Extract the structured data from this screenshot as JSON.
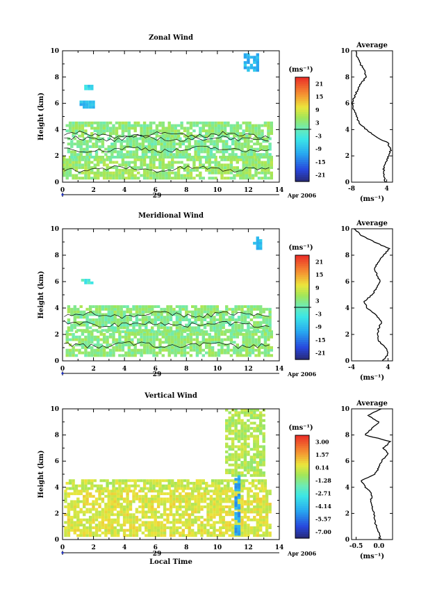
{
  "chart_data": [
    {
      "type": "heatmap",
      "title": "Zonal Wind",
      "xlabel": "",
      "ylabel": "Height (km)",
      "xlim": [
        0,
        14
      ],
      "ylim": [
        0,
        10
      ],
      "xticks": [
        "0",
        "2",
        "4",
        "6",
        "8",
        "10",
        "12",
        "14"
      ],
      "yticks": [
        "0",
        "2",
        "4",
        "6",
        "8",
        "10"
      ],
      "date_day": "29",
      "date_month": "Apr 2006",
      "colorbar": {
        "unit": "(ms⁻¹)",
        "labels": [
          "21",
          "15",
          "9",
          "3",
          "-3",
          "-9",
          "-15",
          "-21"
        ],
        "min": -24,
        "max": 24,
        "zero_line": 0
      },
      "field_levels": [
        [
          0.2,
          1.8,
          5,
          [
            0,
            13.4
          ]
        ],
        [
          1.8,
          3.4,
          3,
          [
            0.3,
            13.4
          ]
        ],
        [
          3.4,
          4.6,
          4,
          [
            0.2,
            13.4
          ]
        ],
        [
          5.6,
          6.2,
          -8,
          [
            1.1,
            2.1
          ]
        ],
        [
          7.0,
          7.4,
          -6,
          [
            1.4,
            1.9
          ]
        ],
        [
          8.4,
          9.6,
          -9,
          [
            11.7,
            12.6
          ]
        ]
      ],
      "contour_heights": [
        3.6,
        3.3,
        2.5,
        1.0
      ],
      "average": {
        "title": "Average",
        "xlabel": "(ms⁻¹)",
        "xlim": [
          -8,
          6
        ],
        "xticks": [
          "-8",
          "4"
        ],
        "yticks": [
          "0",
          "2",
          "4",
          "6",
          "8",
          "10"
        ],
        "height": [
          0.0,
          0.5,
          1.0,
          1.5,
          2.0,
          2.5,
          3.0,
          3.5,
          4.0,
          4.5,
          5.0,
          5.5,
          6.0,
          6.5,
          7.0,
          7.5,
          8.0,
          8.5,
          9.0,
          9.5,
          10.0
        ],
        "value": [
          3.5,
          3.2,
          3.0,
          3.8,
          4.6,
          5.5,
          4.3,
          0.0,
          -3.0,
          -5.5,
          -6.3,
          -7.2,
          -7.9,
          -7.0,
          -6.0,
          -4.8,
          -3.0,
          -3.5,
          -5.0,
          -6.0,
          -6.5
        ]
      }
    },
    {
      "type": "heatmap",
      "title": "Meridional Wind",
      "xlabel": "",
      "ylabel": "Height (km)",
      "xlim": [
        0,
        14
      ],
      "ylim": [
        0,
        10
      ],
      "xticks": [
        "0",
        "2",
        "4",
        "6",
        "8",
        "10",
        "12",
        "14"
      ],
      "yticks": [
        "0",
        "2",
        "4",
        "6",
        "8",
        "10"
      ],
      "date_day": "29",
      "date_month": "Apr 2006",
      "colorbar": {
        "unit": "(ms⁻¹)",
        "labels": [
          "21",
          "15",
          "9",
          "3",
          "-3",
          "-9",
          "-15",
          "-21"
        ],
        "min": -24,
        "max": 24,
        "zero_line": 0
      },
      "field_levels": [
        [
          0.3,
          2.2,
          4,
          [
            0.2,
            13.4
          ]
        ],
        [
          2.2,
          3.6,
          3,
          [
            0.3,
            13.4
          ]
        ],
        [
          3.6,
          4.1,
          4,
          [
            0.3,
            13.4
          ]
        ],
        [
          5.8,
          6.2,
          -2,
          [
            1.2,
            1.8
          ]
        ],
        [
          8.4,
          9.3,
          -9,
          [
            12.3,
            12.8
          ]
        ]
      ],
      "contour_heights": [
        3.5,
        2.8,
        1.2
      ],
      "average": {
        "title": "Average",
        "xlabel": "(ms⁻¹)",
        "xlim": [
          -4,
          5
        ],
        "xticks": [
          "-4",
          "4"
        ],
        "yticks": [
          "0",
          "2",
          "4",
          "6",
          "8",
          "10"
        ],
        "height": [
          0.0,
          0.5,
          1.0,
          1.5,
          2.0,
          2.5,
          3.0,
          3.5,
          4.0,
          4.5,
          5.0,
          5.5,
          6.0,
          6.5,
          7.0,
          7.5,
          8.0,
          8.5,
          9.0,
          9.5,
          10.0
        ],
        "value": [
          2.8,
          4.0,
          3.5,
          2.0,
          1.6,
          2.0,
          2.6,
          1.2,
          -0.5,
          -1.2,
          0.5,
          1.5,
          2.3,
          1.6,
          1.0,
          1.8,
          3.0,
          4.3,
          1.0,
          -1.8,
          -3.5
        ]
      }
    },
    {
      "type": "heatmap",
      "title": "Vertical Wind",
      "xlabel": "Local Time",
      "ylabel": "Height (km)",
      "xlim": [
        0,
        14
      ],
      "ylim": [
        0,
        10
      ],
      "xticks": [
        "0",
        "2",
        "4",
        "6",
        "8",
        "10",
        "12",
        "14"
      ],
      "yticks": [
        "0",
        "2",
        "4",
        "6",
        "8",
        "10"
      ],
      "date_day": "29",
      "date_month": "Apr 2006",
      "colorbar": {
        "unit": "(ms⁻¹)",
        "labels": [
          "3.00",
          "1.57",
          "0.14",
          "-1.28",
          "-2.71",
          "-4.14",
          "-5.57",
          "-7.00"
        ],
        "min": -7.7,
        "max": 3.7,
        "zero_line": null
      },
      "field_levels": [
        [
          0.2,
          3.8,
          0.3,
          [
            0.1,
            13.4
          ]
        ],
        [
          3.8,
          4.6,
          0.0,
          [
            0.2,
            13.1
          ]
        ],
        [
          4.8,
          9.8,
          -0.4,
          [
            10.5,
            13.0
          ]
        ],
        [
          0.3,
          4.8,
          -4.5,
          [
            11.1,
            11.3
          ]
        ]
      ],
      "contour_heights": [],
      "average": {
        "title": "Average",
        "xlabel": "(ms⁻¹)",
        "xlim": [
          -0.6,
          0.3
        ],
        "xticks": [
          "-0.5",
          "0.0"
        ],
        "yticks": [
          "0",
          "2",
          "4",
          "6",
          "8",
          "10"
        ],
        "height": [
          0.0,
          0.5,
          1.0,
          1.5,
          2.0,
          2.5,
          3.0,
          3.5,
          4.0,
          4.5,
          5.0,
          5.5,
          6.0,
          6.5,
          7.0,
          7.5,
          8.0,
          8.5,
          9.0,
          9.5,
          10.0
        ],
        "value": [
          0.05,
          0.0,
          -0.05,
          -0.1,
          -0.1,
          -0.15,
          -0.18,
          -0.15,
          -0.3,
          -0.38,
          -0.1,
          0.0,
          0.05,
          0.2,
          0.1,
          0.25,
          -0.3,
          -0.15,
          0.0,
          -0.25,
          0.05
        ]
      }
    }
  ]
}
